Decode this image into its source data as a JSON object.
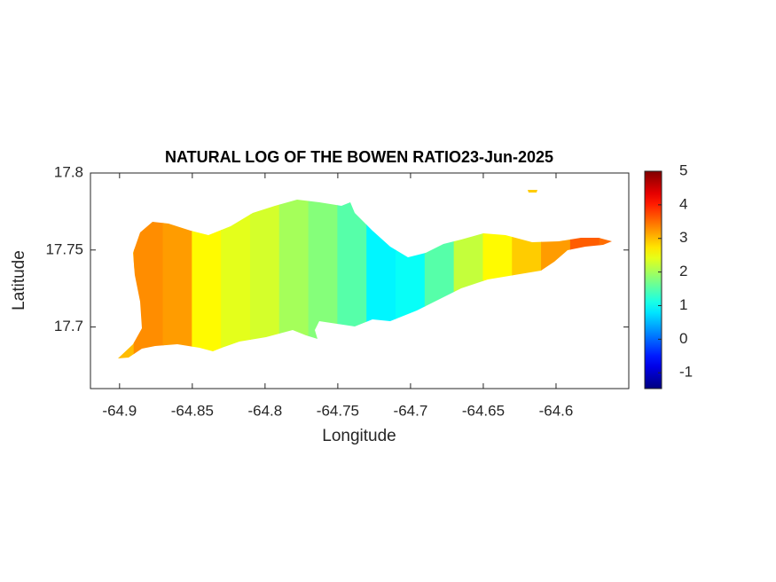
{
  "chart_data": {
    "type": "heatmap-map",
    "title": "NATURAL LOG OF THE BOWEN RATIO23-Jun-2025",
    "x_label": "Longitude",
    "y_label": "Latitude",
    "x": [
      -64.9,
      -64.88,
      -64.86,
      -64.84,
      -64.82,
      -64.8,
      -64.78,
      -64.76,
      -64.74,
      -64.72,
      -64.7,
      -64.68,
      -64.66,
      -64.64,
      -64.62,
      -64.6,
      -64.58,
      -64.56
    ],
    "values": [
      3.0,
      3.3,
      3.2,
      2.6,
      2.4,
      2.3,
      2.0,
      1.8,
      1.5,
      0.9,
      1.0,
      1.5,
      2.2,
      2.6,
      2.9,
      3.2,
      3.6,
      3.5
    ],
    "xlim": [
      -64.92,
      -64.55
    ],
    "xticks": [
      -64.9,
      -64.85,
      -64.8,
      -64.75,
      -64.7,
      -64.65,
      -64.6
    ],
    "ylim": [
      17.66,
      17.8
    ],
    "yticks": [
      17.7,
      17.75,
      17.8
    ],
    "colormap": "jet",
    "clim": [
      -1.47,
      5
    ],
    "cticks": [
      -1,
      0,
      1,
      2,
      3,
      4,
      5
    ]
  }
}
